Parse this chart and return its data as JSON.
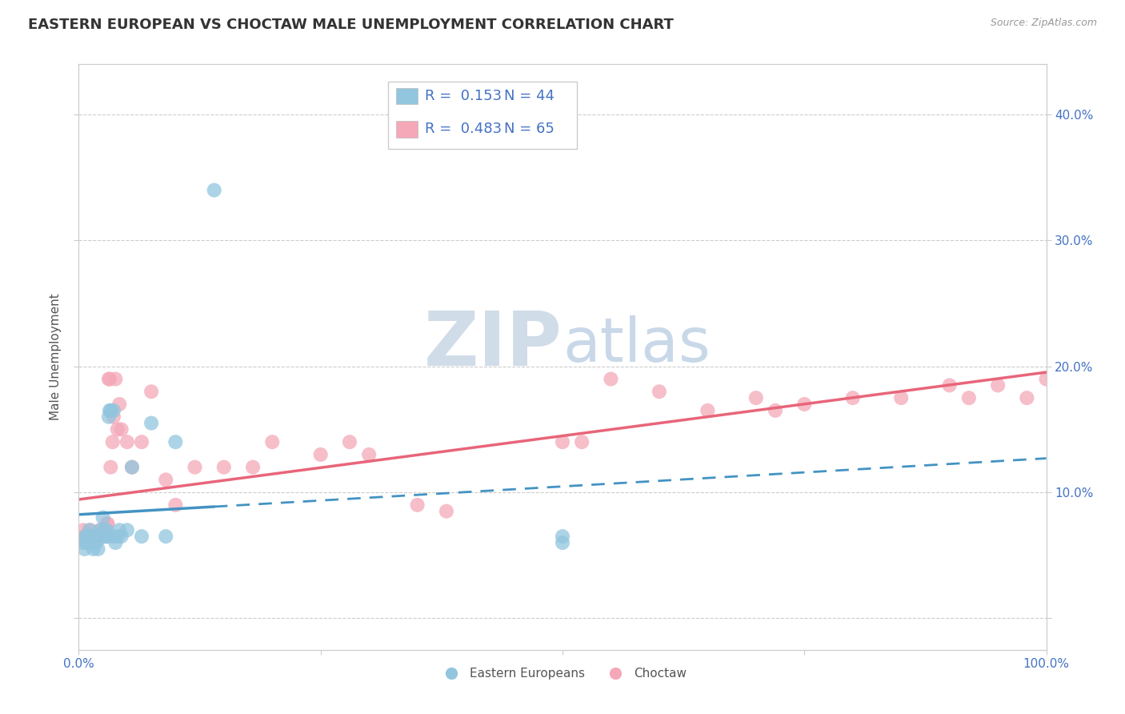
{
  "title": "EASTERN EUROPEAN VS CHOCTAW MALE UNEMPLOYMENT CORRELATION CHART",
  "source": "Source: ZipAtlas.com",
  "ylabel": "Male Unemployment",
  "xlim": [
    0,
    1.0
  ],
  "ylim": [
    -0.025,
    0.44
  ],
  "xticks": [
    0.0,
    0.25,
    0.5,
    0.75,
    1.0
  ],
  "xticklabels": [
    "0.0%",
    "",
    "",
    "",
    "100.0%"
  ],
  "yticks": [
    0.0,
    0.1,
    0.2,
    0.3,
    0.4
  ],
  "yticklabels": [
    "",
    "10.0%",
    "20.0%",
    "30.0%",
    "40.0%"
  ],
  "legend_labels": [
    "Eastern Europeans",
    "Choctaw"
  ],
  "legend_r": [
    "R =  0.153",
    "R =  0.483"
  ],
  "legend_n": [
    "N = 44",
    "N = 65"
  ],
  "blue_color": "#92C5DE",
  "pink_color": "#F4A8B8",
  "blue_line_color": "#4393C3",
  "pink_line_color": "#E8657A",
  "watermark_zip": "ZIP",
  "watermark_atlas": "atlas",
  "title_fontsize": 13,
  "axis_label_fontsize": 11,
  "tick_fontsize": 11,
  "tick_color": "#4472C4",
  "blue_x": [
    0.005,
    0.006,
    0.007,
    0.008,
    0.009,
    0.01,
    0.011,
    0.012,
    0.013,
    0.014,
    0.015,
    0.016,
    0.017,
    0.018,
    0.019,
    0.02,
    0.021,
    0.022,
    0.023,
    0.024,
    0.025,
    0.026,
    0.027,
    0.028,
    0.029,
    0.03,
    0.031,
    0.032,
    0.033,
    0.035,
    0.036,
    0.038,
    0.04,
    0.042,
    0.044,
    0.05,
    0.055,
    0.065,
    0.075,
    0.09,
    0.1,
    0.14,
    0.5,
    0.5
  ],
  "blue_y": [
    0.06,
    0.055,
    0.065,
    0.06,
    0.065,
    0.065,
    0.07,
    0.065,
    0.065,
    0.06,
    0.055,
    0.065,
    0.06,
    0.06,
    0.065,
    0.055,
    0.065,
    0.07,
    0.065,
    0.065,
    0.08,
    0.065,
    0.07,
    0.065,
    0.07,
    0.065,
    0.16,
    0.165,
    0.165,
    0.065,
    0.165,
    0.06,
    0.065,
    0.07,
    0.065,
    0.07,
    0.12,
    0.065,
    0.155,
    0.065,
    0.14,
    0.34,
    0.06,
    0.065
  ],
  "pink_x": [
    0.005,
    0.006,
    0.007,
    0.008,
    0.009,
    0.01,
    0.011,
    0.012,
    0.013,
    0.014,
    0.015,
    0.016,
    0.017,
    0.018,
    0.019,
    0.02,
    0.021,
    0.022,
    0.023,
    0.024,
    0.025,
    0.026,
    0.027,
    0.028,
    0.029,
    0.03,
    0.031,
    0.032,
    0.033,
    0.035,
    0.036,
    0.038,
    0.04,
    0.042,
    0.044,
    0.05,
    0.055,
    0.065,
    0.075,
    0.09,
    0.1,
    0.12,
    0.15,
    0.18,
    0.2,
    0.25,
    0.28,
    0.3,
    0.35,
    0.38,
    0.5,
    0.52,
    0.55,
    0.6,
    0.65,
    0.7,
    0.72,
    0.75,
    0.8,
    0.85,
    0.9,
    0.92,
    0.95,
    0.98,
    1.0
  ],
  "pink_y": [
    0.07,
    0.065,
    0.065,
    0.065,
    0.065,
    0.065,
    0.065,
    0.07,
    0.065,
    0.065,
    0.065,
    0.065,
    0.065,
    0.065,
    0.065,
    0.065,
    0.065,
    0.07,
    0.065,
    0.065,
    0.065,
    0.07,
    0.065,
    0.065,
    0.075,
    0.075,
    0.19,
    0.19,
    0.12,
    0.14,
    0.16,
    0.19,
    0.15,
    0.17,
    0.15,
    0.14,
    0.12,
    0.14,
    0.18,
    0.11,
    0.09,
    0.12,
    0.12,
    0.12,
    0.14,
    0.13,
    0.14,
    0.13,
    0.09,
    0.085,
    0.14,
    0.14,
    0.19,
    0.18,
    0.165,
    0.175,
    0.165,
    0.17,
    0.175,
    0.175,
    0.185,
    0.175,
    0.185,
    0.175,
    0.19
  ],
  "background_color": "#FFFFFF",
  "grid_color": "#CCCCCC"
}
